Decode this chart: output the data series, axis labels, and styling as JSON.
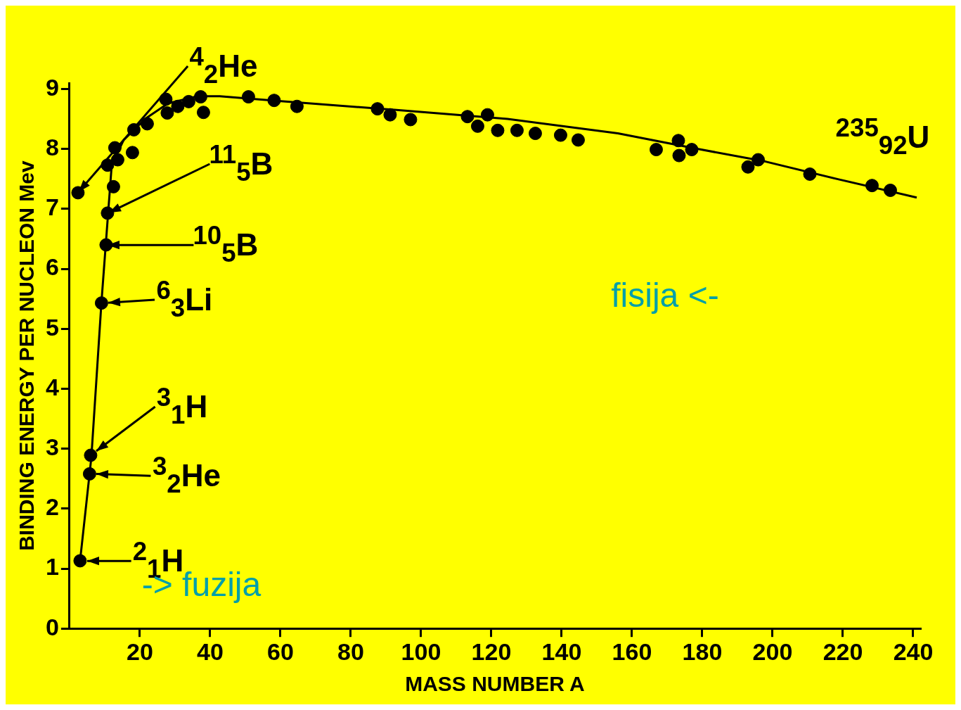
{
  "chart_data": {
    "type": "scatter",
    "xlabel": "MASS NUMBER A",
    "ylabel": "BINDING ENERGY PER NUCLEON Mev",
    "xlim": [
      0,
      242
    ],
    "ylim": [
      0,
      9.1
    ],
    "xticks": [
      20,
      40,
      60,
      80,
      100,
      120,
      140,
      160,
      180,
      200,
      220,
      240
    ],
    "yticks": [
      0,
      1,
      2,
      3,
      4,
      5,
      6,
      7,
      8,
      9
    ],
    "legend": false,
    "marker": "circle",
    "series": [
      {
        "type": "line",
        "marker": "none",
        "color": "#000000",
        "x": [
          3.0,
          6.2,
          9.1,
          12.0,
          15.4,
          21.7,
          28.0,
          36.4,
          42.7,
          59.5,
          93.0,
          124.6,
          156.0,
          177.0,
          198.0,
          219.0,
          241.0
        ],
        "values": [
          1.13,
          2.85,
          5.46,
          7.73,
          8.15,
          8.51,
          8.76,
          8.88,
          8.88,
          8.8,
          8.65,
          8.5,
          8.26,
          8.02,
          7.79,
          7.49,
          7.19
        ]
      },
      {
        "type": "scatter",
        "color": "#000000",
        "x": [
          2.4,
          3.0,
          5.7,
          6.0,
          9.1,
          10.4,
          10.8,
          10.8,
          12.5,
          12.9,
          13.7,
          17.9,
          18.3,
          22.1,
          27.4,
          27.8,
          30.8,
          33.9,
          37.3,
          38.1,
          50.9,
          58.2,
          64.7,
          87.6,
          91.2,
          97.0,
          113.2,
          116.1,
          118.9,
          121.8,
          127.3,
          132.5,
          139.7,
          144.7,
          166.9,
          173.2,
          173.4,
          177.0,
          193.0,
          195.9,
          210.6,
          228.3,
          233.5
        ],
        "values": [
          7.27,
          1.13,
          2.58,
          2.89,
          5.43,
          6.4,
          6.93,
          7.73,
          7.37,
          8.02,
          7.82,
          7.94,
          8.32,
          8.42,
          8.83,
          8.6,
          8.71,
          8.79,
          8.87,
          8.61,
          8.87,
          8.81,
          8.71,
          8.67,
          8.57,
          8.49,
          8.54,
          8.38,
          8.57,
          8.31,
          8.31,
          8.26,
          8.23,
          8.15,
          7.99,
          8.14,
          7.89,
          7.99,
          7.7,
          7.82,
          7.58,
          7.39,
          7.31
        ]
      }
    ],
    "annotations": [
      {
        "text": "$^{4}$$_{2}$He",
        "x": 2.4,
        "y": 7.27
      },
      {
        "text": "$^{11}$$_{5}$B",
        "x": 10.8,
        "y": 6.93
      },
      {
        "text": "$^{10}$$_{5}$B",
        "x": 10.4,
        "y": 6.4
      },
      {
        "text": "$^{6}$$_{3}$Li",
        "x": 9.1,
        "y": 5.43
      },
      {
        "text": "$^{3}$$_{1}$H",
        "x": 6.0,
        "y": 2.89
      },
      {
        "text": "$^{3}$$_{2}$He",
        "x": 5.7,
        "y": 2.58
      },
      {
        "text": "$^{2}$$_{1}$H",
        "x": 3.0,
        "y": 1.13
      },
      {
        "text": "$^{235}$$_{92}$U",
        "x": 233.5,
        "y": 7.31
      },
      "-> fuzija",
      "fisija <-"
    ]
  }
}
